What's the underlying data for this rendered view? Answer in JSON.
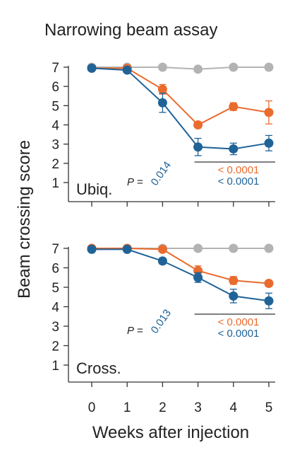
{
  "title": "Narrowing beam assay",
  "ylabel": "Beam crossing score",
  "xlabel": "Weeks after injection",
  "colors": {
    "gray": "#b3b3b3",
    "orange": "#ea6b2e",
    "blue": "#1f6397",
    "axis": "#333333",
    "text": "#222222"
  },
  "chart_data": [
    {
      "type": "line",
      "panel_label": "Ubiq.",
      "x": [
        0,
        1,
        2,
        3,
        4,
        5
      ],
      "xticks": [
        "0",
        "1",
        "2",
        "3",
        "4",
        "5"
      ],
      "yticks": [
        "1",
        "2",
        "3",
        "4",
        "5",
        "6",
        "7"
      ],
      "ylim": [
        1,
        7
      ],
      "xlim": [
        0,
        5
      ],
      "series": [
        {
          "color": "gray",
          "values": [
            7.0,
            7.0,
            7.0,
            6.9,
            7.0,
            7.0
          ],
          "err": [
            0,
            0,
            0,
            0,
            0,
            0
          ]
        },
        {
          "color": "orange",
          "values": [
            6.95,
            6.95,
            5.85,
            4.0,
            4.95,
            4.65
          ],
          "err": [
            0.1,
            0.1,
            0.25,
            0.15,
            0.2,
            0.6
          ]
        },
        {
          "color": "blue",
          "values": [
            6.95,
            6.85,
            5.15,
            2.85,
            2.75,
            3.05
          ],
          "err": [
            0.1,
            0.1,
            0.5,
            0.45,
            0.3,
            0.4
          ]
        }
      ],
      "p_label": "P =",
      "p_value_blue_vs_gray": "0.014",
      "comparison_p_values": [
        {
          "color": "orange",
          "text": "< 0.0001"
        },
        {
          "color": "blue",
          "text": "< 0.0001"
        }
      ]
    },
    {
      "type": "line",
      "panel_label": "Cross.",
      "x": [
        0,
        1,
        2,
        3,
        4,
        5
      ],
      "xticks": [
        "0",
        "1",
        "2",
        "3",
        "4",
        "5"
      ],
      "yticks": [
        "1",
        "2",
        "3",
        "4",
        "5",
        "6",
        "7"
      ],
      "ylim": [
        1,
        7
      ],
      "xlim": [
        0,
        5
      ],
      "series": [
        {
          "color": "gray",
          "values": [
            7.0,
            7.0,
            7.0,
            7.0,
            7.0,
            7.0
          ],
          "err": [
            0,
            0,
            0,
            0,
            0,
            0
          ]
        },
        {
          "color": "orange",
          "values": [
            7.0,
            7.0,
            6.95,
            5.85,
            5.35,
            5.2
          ],
          "err": [
            0.05,
            0.05,
            0.1,
            0.25,
            0.2,
            0.15
          ]
        },
        {
          "color": "blue",
          "values": [
            6.95,
            6.95,
            6.35,
            5.5,
            4.55,
            4.3
          ],
          "err": [
            0.05,
            0.05,
            0.15,
            0.25,
            0.35,
            0.4
          ]
        }
      ],
      "p_label": "P =",
      "p_value_blue_vs_gray": "0.013",
      "comparison_p_values": [
        {
          "color": "orange",
          "text": "< 0.0001"
        },
        {
          "color": "blue",
          "text": "< 0.0001"
        }
      ]
    }
  ]
}
